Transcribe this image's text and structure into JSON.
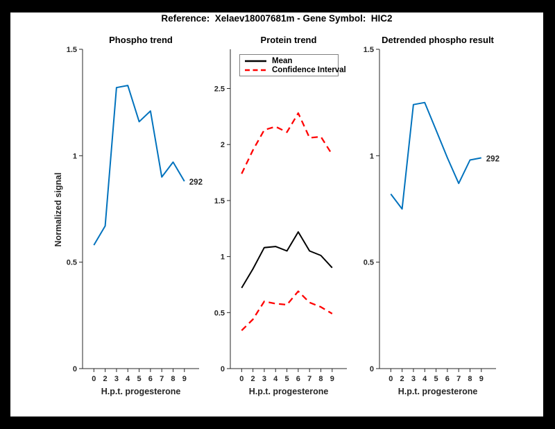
{
  "figure": {
    "title": "Reference:  Xelaev18007681m - Gene Symbol:  HIC2",
    "background": "#ffffff",
    "frame_color": "#000000",
    "axis_color": "#262626"
  },
  "chart_data": [
    {
      "type": "line",
      "title": "Phospho trend",
      "xlabel": "H.p.t. progesterone",
      "ylabel": "Normalized signal",
      "x_ticklabels": [
        "0",
        "2",
        "3",
        "4",
        "5",
        "6",
        "7",
        "8",
        "9"
      ],
      "ylim": [
        0,
        1.5
      ],
      "yticks": [
        0,
        0.5,
        1,
        1.5
      ],
      "ytick_labels": [
        "0",
        "0.5",
        "1",
        "1.5"
      ],
      "grid": false,
      "series": [
        {
          "name": "Phospho trend",
          "color": "#0072BD",
          "style": "solid",
          "values": [
            0.58,
            0.67,
            1.32,
            1.33,
            1.16,
            1.21,
            0.9,
            0.97,
            0.88
          ]
        }
      ],
      "end_label": "292"
    },
    {
      "type": "line",
      "title": "Protein trend",
      "xlabel": "H.p.t. progesterone",
      "ylabel": "",
      "x_ticklabels": [
        "0",
        "2",
        "3",
        "4",
        "5",
        "6",
        "7",
        "8",
        "9"
      ],
      "ylim": [
        0,
        2.85
      ],
      "yticks": [
        0,
        0.5,
        1,
        1.5,
        2,
        2.5
      ],
      "ytick_labels": [
        "0",
        "0.5",
        "1",
        "1.5",
        "2",
        "2.5"
      ],
      "grid": false,
      "legend_position": "top-left-inside",
      "series": [
        {
          "name": "Mean",
          "color": "#000000",
          "style": "solid",
          "in_legend": true,
          "values": [
            0.72,
            0.89,
            1.08,
            1.09,
            1.05,
            1.22,
            1.05,
            1.01,
            0.9
          ]
        },
        {
          "name": "Confidence Interval",
          "color": "#FF0000",
          "style": "dashed",
          "in_legend": true,
          "values": [
            1.74,
            1.95,
            2.13,
            2.16,
            2.11,
            2.28,
            2.06,
            2.07,
            1.91
          ]
        },
        {
          "name": "Confidence Interval",
          "color": "#FF0000",
          "style": "dashed",
          "in_legend": false,
          "values": [
            0.34,
            0.44,
            0.6,
            0.58,
            0.57,
            0.69,
            0.59,
            0.55,
            0.49
          ]
        }
      ]
    },
    {
      "type": "line",
      "title": "Detrended phospho result",
      "xlabel": "H.p.t. progesterone",
      "ylabel": "",
      "x_ticklabels": [
        "0",
        "2",
        "3",
        "4",
        "5",
        "6",
        "7",
        "8",
        "9"
      ],
      "ylim": [
        0,
        1.5
      ],
      "yticks": [
        0,
        0.5,
        1,
        1.5
      ],
      "ytick_labels": [
        "0",
        "0.5",
        "1",
        "1.5"
      ],
      "grid": false,
      "series": [
        {
          "name": "Detrended phospho",
          "color": "#0072BD",
          "style": "solid",
          "values": [
            0.82,
            0.75,
            1.24,
            1.25,
            1.12,
            0.99,
            0.87,
            0.98,
            0.99
          ]
        }
      ],
      "end_label": "292"
    }
  ]
}
